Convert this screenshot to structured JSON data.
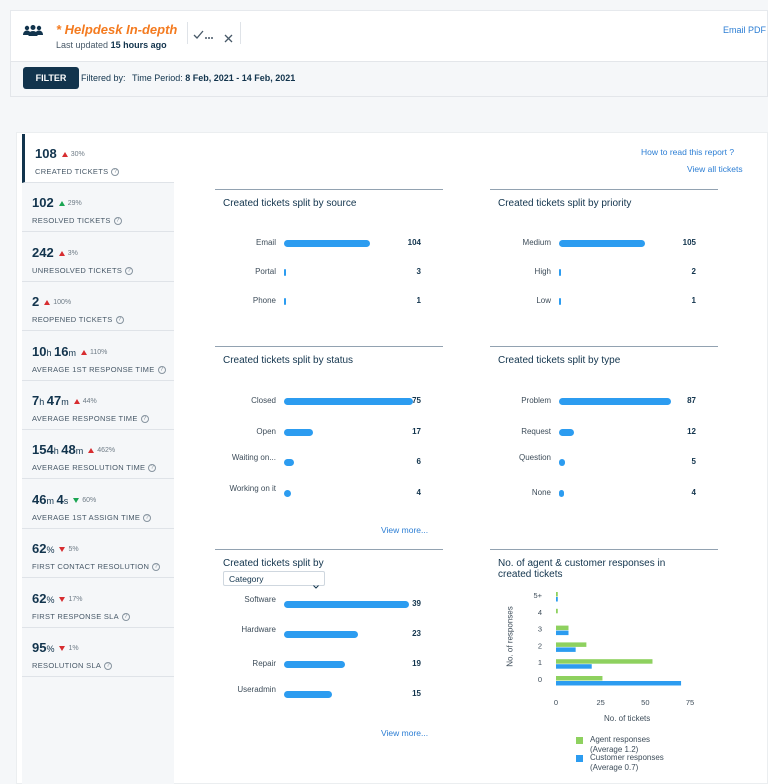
{
  "header": {
    "title": "* Helpdesk In-depth",
    "last_updated_prefix": "Last updated",
    "last_updated_value": "15 hours ago",
    "email_pdf": "Email PDF"
  },
  "filter": {
    "button": "FILTER",
    "filtered_by": "Filtered by:",
    "period_label": "Time Period:",
    "period_value": "8 Feb, 2021 - 14 Feb, 2021"
  },
  "links": {
    "how_to_read": "How to read this report ?",
    "view_all": "View all tickets"
  },
  "metrics": [
    {
      "value": "108",
      "pct": "30%",
      "dir": "up",
      "good": false,
      "label": "CREATED TICKETS"
    },
    {
      "value": "102",
      "pct": "29%",
      "dir": "up",
      "good": true,
      "label": "RESOLVED TICKETS"
    },
    {
      "value": "242",
      "pct": "3%",
      "dir": "up",
      "good": false,
      "label": "UNRESOLVED TICKETS"
    },
    {
      "value": "2",
      "pct": "100%",
      "dir": "up",
      "good": false,
      "label": "REOPENED TICKETS"
    },
    {
      "value_parts": [
        "10",
        "h ",
        "16",
        "m"
      ],
      "pct": "110%",
      "dir": "up",
      "good": false,
      "label": "AVERAGE 1ST RESPONSE TIME"
    },
    {
      "value_parts": [
        "7",
        "h ",
        "47",
        "m"
      ],
      "pct": "44%",
      "dir": "up",
      "good": false,
      "label": "AVERAGE RESPONSE TIME"
    },
    {
      "value_parts": [
        "154",
        "h ",
        "48",
        "m"
      ],
      "pct": "462%",
      "dir": "up",
      "good": false,
      "label": "AVERAGE RESOLUTION TIME"
    },
    {
      "value_parts": [
        "46",
        "m ",
        "4",
        "s"
      ],
      "pct": "60%",
      "dir": "down",
      "good": true,
      "label": "AVERAGE 1ST ASSIGN TIME"
    },
    {
      "value_parts": [
        "62",
        "%"
      ],
      "pct": "5%",
      "dir": "down",
      "good": false,
      "label": "FIRST CONTACT RESOLUTION"
    },
    {
      "value_parts": [
        "62",
        "%"
      ],
      "pct": "17%",
      "dir": "down",
      "good": false,
      "label": "FIRST RESPONSE SLA"
    },
    {
      "value_parts": [
        "95",
        "%"
      ],
      "pct": "1%",
      "dir": "down",
      "good": false,
      "label": "RESOLUTION SLA"
    }
  ],
  "panels": {
    "source": {
      "title": "Created tickets split by source",
      "rows": [
        {
          "label": "Email",
          "value": 104
        },
        {
          "label": "Portal",
          "value": 3
        },
        {
          "label": "Phone",
          "value": 1
        }
      ],
      "max": 104
    },
    "priority": {
      "title": "Created tickets split by priority",
      "rows": [
        {
          "label": "Medium",
          "value": 105
        },
        {
          "label": "High",
          "value": 2
        },
        {
          "label": "Low",
          "value": 1
        }
      ],
      "max": 105
    },
    "status": {
      "title": "Created tickets split by status",
      "rows": [
        {
          "label": "Closed",
          "value": 75
        },
        {
          "label": "Open",
          "value": 17
        },
        {
          "label": "Waiting on...",
          "value": 6
        },
        {
          "label": "Working on it",
          "value": 4
        }
      ],
      "max": 75,
      "view_more": "View more..."
    },
    "type": {
      "title": "Created tickets split by type",
      "rows": [
        {
          "label": "Problem",
          "value": 87
        },
        {
          "label": "Request",
          "value": 12
        },
        {
          "label": "Question",
          "value": 5
        },
        {
          "label": "None",
          "value": 4
        }
      ],
      "max": 87
    },
    "category": {
      "title": "Created tickets split by",
      "select": "Category",
      "rows": [
        {
          "label": "Software",
          "value": 39
        },
        {
          "label": "Hardware",
          "value": 23
        },
        {
          "label": "Repair",
          "value": 19
        },
        {
          "label": "Useradmin",
          "value": 15
        }
      ],
      "max": 39,
      "view_more": "View more..."
    }
  },
  "chart_data": {
    "type": "bar",
    "orientation": "horizontal",
    "title": "No. of agent & customer responses in created tickets",
    "xlabel": "No. of tickets",
    "ylabel": "No. of responses",
    "categories": [
      "5+",
      "4",
      "3",
      "2",
      "1",
      "0"
    ],
    "xlim": [
      0,
      75
    ],
    "xticks": [
      "0",
      "25",
      "50",
      "75"
    ],
    "series": [
      {
        "name": "Agent responses",
        "note": "(Average 1.2)",
        "color": "#8ed15f",
        "values": [
          1,
          1,
          7,
          17,
          54,
          26
        ]
      },
      {
        "name": "Customer responses",
        "note": "(Average 0.7)",
        "color": "#2c9cf0",
        "values": [
          1,
          0,
          7,
          11,
          20,
          70
        ]
      }
    ]
  },
  "colors": {
    "accent": "#f47b20",
    "primary": "#12344d",
    "bar": "#2c9cf0",
    "agent": "#8ed15f",
    "customer": "#2c9cf0",
    "up_bad": "#d72d30",
    "good": "#1aa552"
  }
}
